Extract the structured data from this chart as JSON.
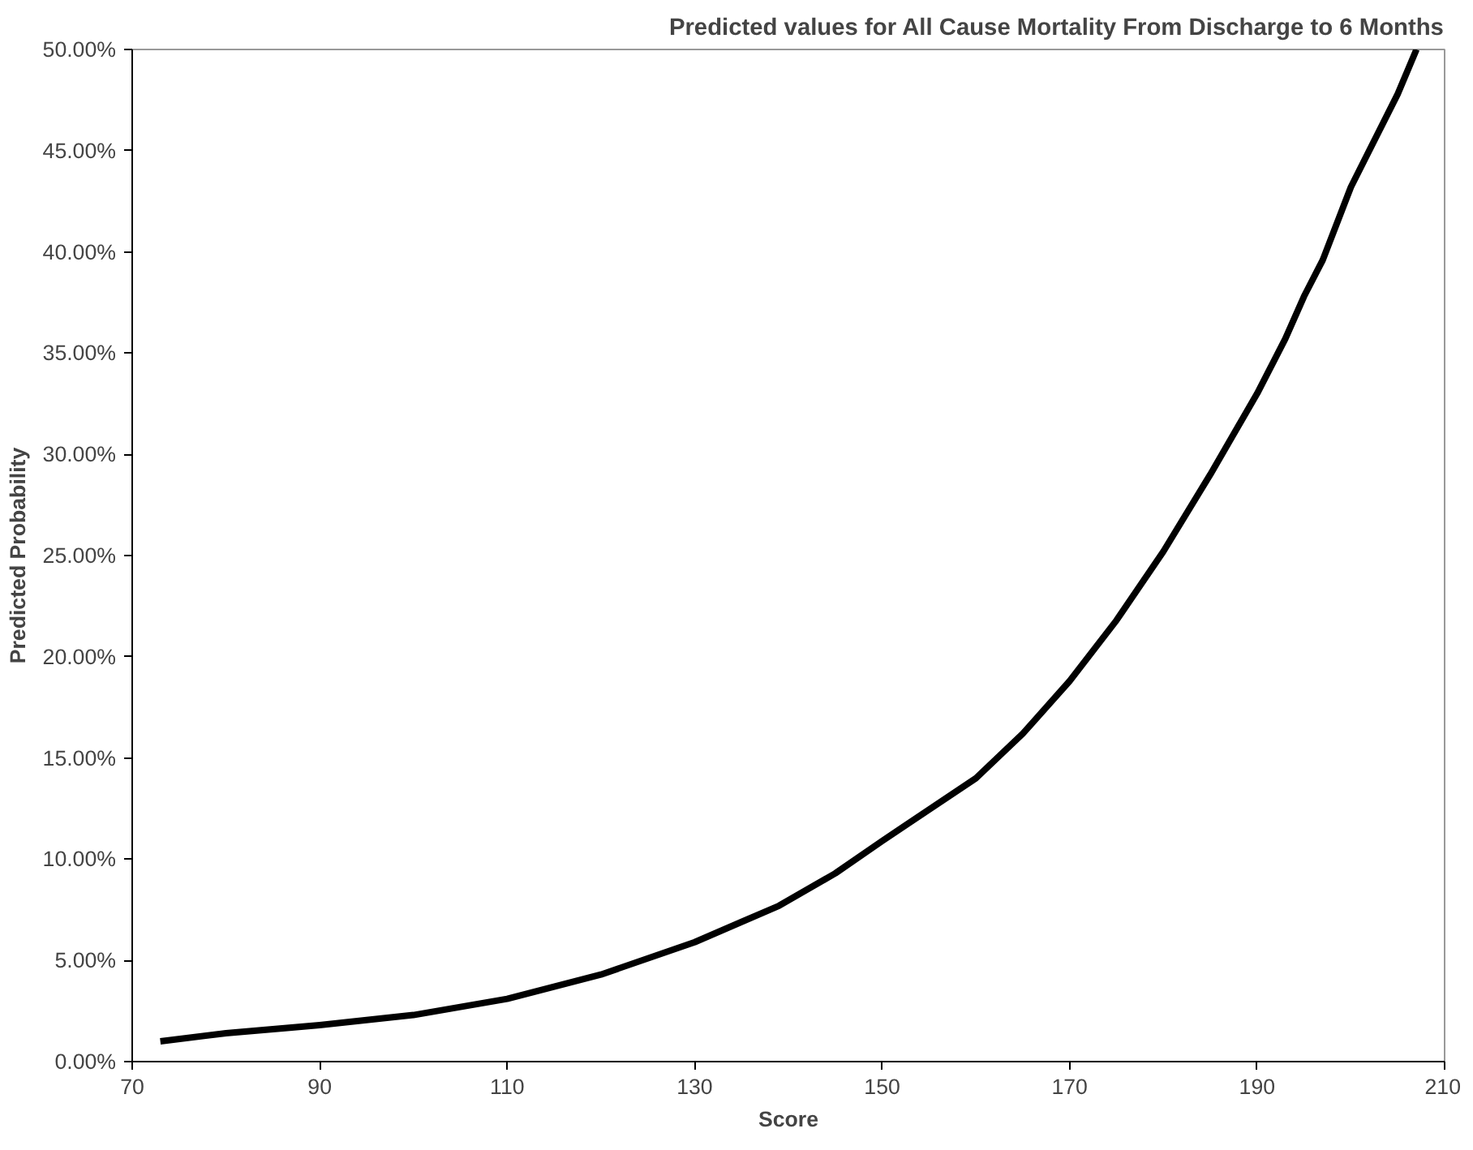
{
  "chart_data": {
    "type": "line",
    "title": "Predicted values for All Cause Mortality From Discharge to 6 Months",
    "xlabel": "Score",
    "ylabel": "Predicted Probability",
    "x": [
      73,
      80,
      90,
      100,
      110,
      120,
      130,
      135,
      139,
      145,
      150,
      160,
      165,
      170,
      175,
      180,
      185,
      190,
      193,
      195,
      197,
      200,
      205,
      207
    ],
    "series": [
      {
        "color": "#000000",
        "values": [
          1.0,
          1.4,
          1.8,
          2.3,
          3.1,
          4.3,
          5.9,
          6.9,
          7.7,
          9.3,
          10.9,
          14.0,
          16.2,
          18.8,
          21.8,
          25.2,
          29.0,
          33.0,
          35.7,
          37.8,
          39.6,
          43.2,
          47.8,
          50.0
        ]
      }
    ],
    "xlim": [
      70,
      210
    ],
    "xticks": [
      70,
      90,
      110,
      130,
      150,
      170,
      190,
      210
    ],
    "ylim": [
      0,
      50
    ],
    "yticks": [
      {
        "value": 0,
        "label": "0.00%"
      },
      {
        "value": 5,
        "label": "5.00%"
      },
      {
        "value": 10,
        "label": "10.00%"
      },
      {
        "value": 15,
        "label": "15.00%"
      },
      {
        "value": 20,
        "label": "20.00%"
      },
      {
        "value": 25,
        "label": "25.00%"
      },
      {
        "value": 30,
        "label": "30.00%"
      },
      {
        "value": 35,
        "label": "35.00%"
      },
      {
        "value": 40,
        "label": "40.00%"
      },
      {
        "value": 45,
        "label": "45.00%"
      },
      {
        "value": 50,
        "label": "50.00%"
      }
    ],
    "grid": false,
    "line_style": "solid"
  }
}
